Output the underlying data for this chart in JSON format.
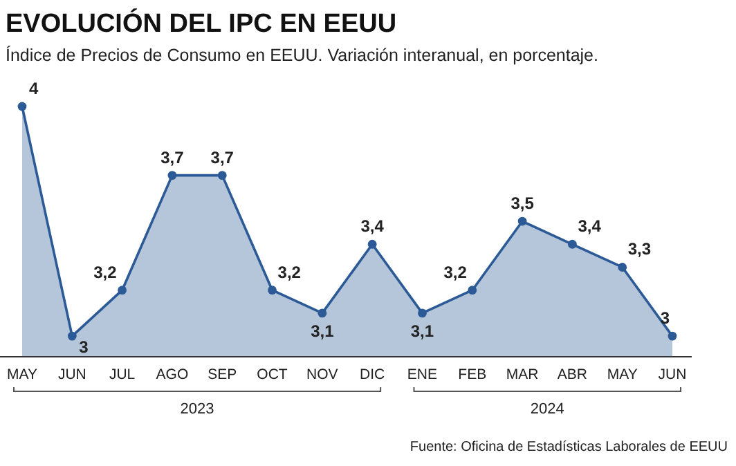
{
  "chart_data": {
    "type": "area",
    "title": "EVOLUCIÓN DEL IPC EN EEUU",
    "subtitle": "Índice de Precios de Consumo en EEUU. Variación interanual, en porcentaje.",
    "categories": [
      "MAY",
      "JUN",
      "JUL",
      "AGO",
      "SEP",
      "OCT",
      "NOV",
      "DIC",
      "ENE",
      "FEB",
      "MAR",
      "ABR",
      "MAY",
      "JUN"
    ],
    "series": [
      {
        "color": "#2b5a96",
        "values": [
          4,
          3,
          3.2,
          3.7,
          3.7,
          3.2,
          3.1,
          3.4,
          3.1,
          3.2,
          3.5,
          3.4,
          3.3,
          3
        ],
        "value_labels": [
          "4",
          "3",
          "3,2",
          "3,7",
          "3,7",
          "3,2",
          "3,1",
          "3,4",
          "3,1",
          "3,2",
          "3,5",
          "3,4",
          "3,3",
          "3"
        ]
      }
    ],
    "tick_labels": "x",
    "marker": "circle",
    "annotations": [
      "2023",
      "2024",
      "Fuente: Oficina de Estadísticas Laborales de EEUU"
    ]
  }
}
